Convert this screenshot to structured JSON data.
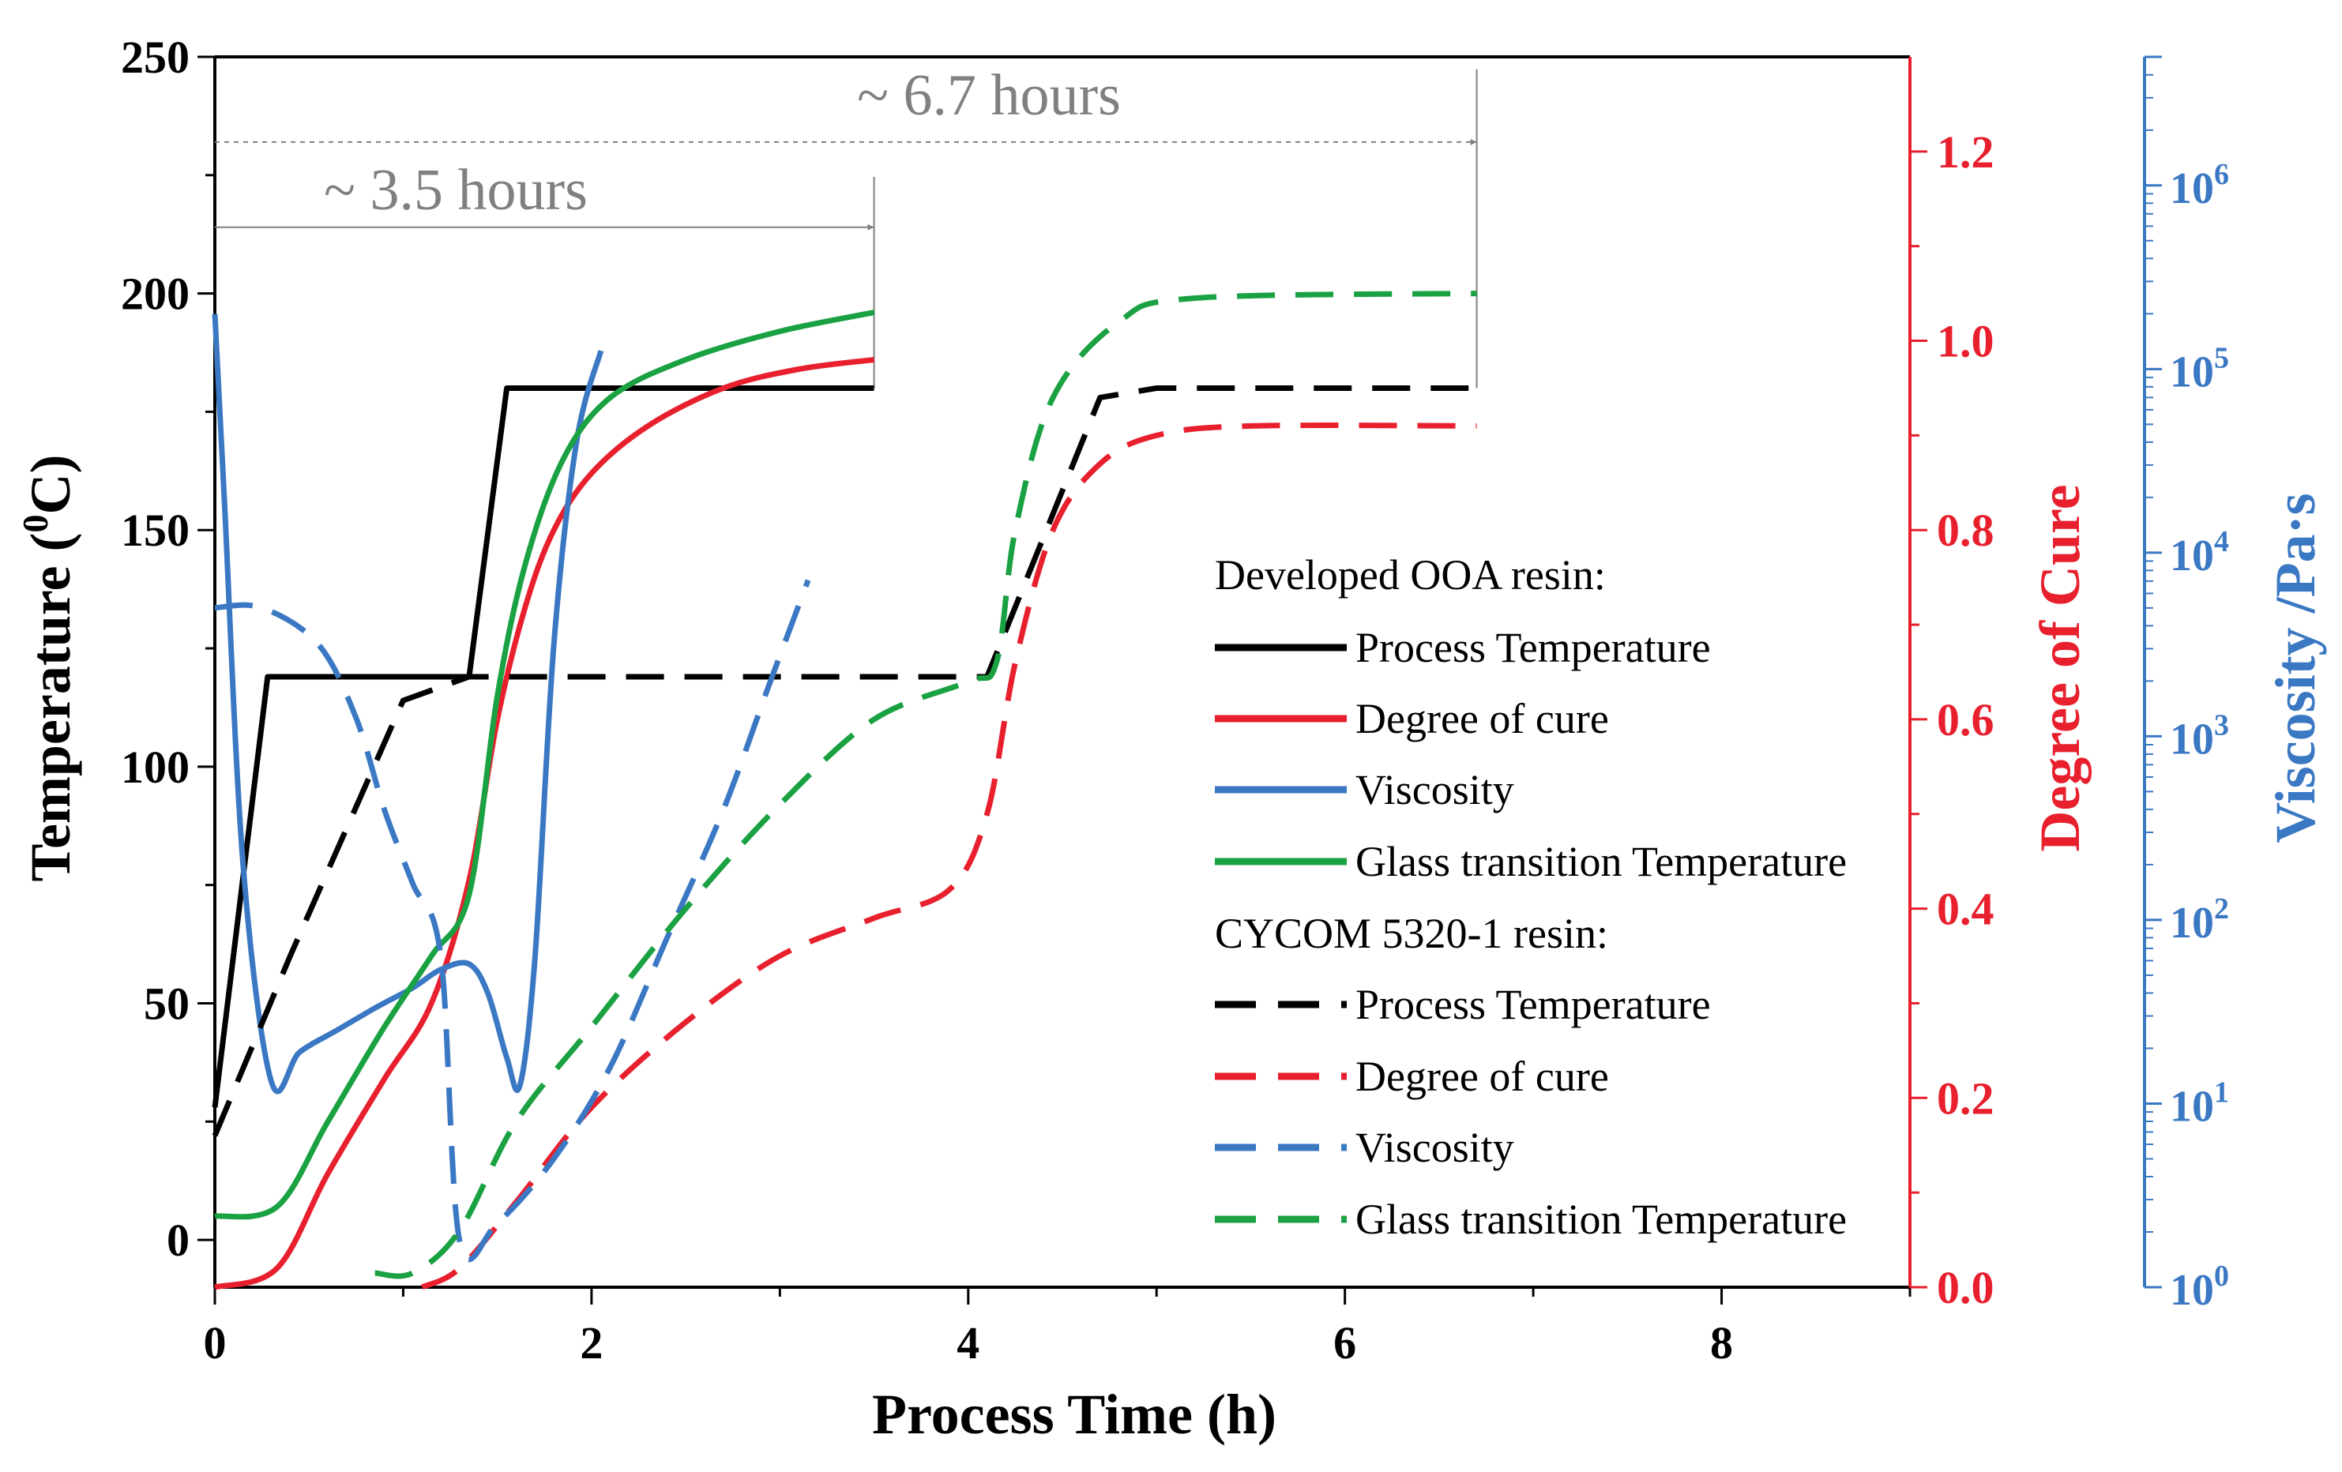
{
  "chart_data": {
    "type": "line",
    "xlabel": "Process Time (h)",
    "ylabel_left_main": "Temperature (",
    "ylabel_left_sup": "0",
    "ylabel_left_end": "C)",
    "ylabel_right1": "Degree of Cure",
    "ylabel_right2": "Viscosity /Pa·s",
    "xlim": [
      0,
      9
    ],
    "ylim_left": [
      -10,
      250
    ],
    "ylim_right1": [
      0,
      1.3
    ],
    "ylim_right2_log10": [
      0,
      6.7
    ],
    "x_ticks": [
      "0",
      "2",
      "4",
      "6",
      "8"
    ],
    "y_left_ticks": [
      "0",
      "50",
      "100",
      "150",
      "200",
      "250"
    ],
    "y_right1_ticks": [
      "0.0",
      "0.2",
      "0.4",
      "0.6",
      "0.8",
      "1.0",
      "1.2"
    ],
    "y_right2_tick_base": "10",
    "y_right2_tick_exponents": [
      "0",
      "1",
      "2",
      "3",
      "4",
      "5",
      "6"
    ],
    "annotations": {
      "short": {
        "text": "~ 3.5 hours",
        "x_end": 3.5,
        "y_level": 214
      },
      "long": {
        "text": "~ 6.7 hours",
        "x_end": 6.7,
        "y_level": 232
      }
    },
    "legend": {
      "group1_title": "Developed OOA resin:",
      "group2_title": "CYCOM 5320-1 resin:",
      "entries1": [
        "Process Temperature",
        "Degree of cure",
        "Viscosity",
        "Glass transition Temperature"
      ],
      "entries2": [
        "Process Temperature",
        "Degree of cure",
        "Viscosity",
        "Glass transition Temperature"
      ]
    },
    "colors": {
      "temperature": "#000000",
      "cure": "#e8202e",
      "viscosity": "#3b78c3",
      "tg": "#1aa142",
      "annotation": "#808080"
    },
    "series": [
      {
        "name": "Developed OOA resin: Process Temperature",
        "axis": "left",
        "style": "solid",
        "color_key": "temperature",
        "points": [
          [
            0,
            28
          ],
          [
            0.28,
            119
          ],
          [
            1.35,
            119
          ],
          [
            1.55,
            180
          ],
          [
            3.5,
            180
          ]
        ]
      },
      {
        "name": "Developed OOA resin: Degree of cure",
        "axis": "right1",
        "style": "solid",
        "color_key": "cure",
        "points": [
          [
            0,
            0
          ],
          [
            0.33,
            0.02
          ],
          [
            0.6,
            0.12
          ],
          [
            0.9,
            0.22
          ],
          [
            1.15,
            0.3
          ],
          [
            1.35,
            0.43
          ],
          [
            1.5,
            0.6
          ],
          [
            1.65,
            0.72
          ],
          [
            1.8,
            0.8
          ],
          [
            2.0,
            0.86
          ],
          [
            2.3,
            0.91
          ],
          [
            2.7,
            0.95
          ],
          [
            3.1,
            0.97
          ],
          [
            3.5,
            0.98
          ]
        ]
      },
      {
        "name": "Developed OOA resin: Viscosity",
        "axis": "right2",
        "style": "solid",
        "color_key": "viscosity",
        "points": [
          [
            0,
            5.3
          ],
          [
            0.05,
            4.3
          ],
          [
            0.15,
            2.3
          ],
          [
            0.3,
            1.12
          ],
          [
            0.45,
            1.28
          ],
          [
            0.65,
            1.4
          ],
          [
            0.85,
            1.52
          ],
          [
            1.05,
            1.63
          ],
          [
            1.2,
            1.73
          ],
          [
            1.35,
            1.76
          ],
          [
            1.45,
            1.6
          ],
          [
            1.55,
            1.25
          ],
          [
            1.62,
            1.1
          ],
          [
            1.7,
            1.8
          ],
          [
            1.8,
            3.5
          ],
          [
            1.92,
            4.6
          ],
          [
            2.05,
            5.1
          ]
        ]
      },
      {
        "name": "Developed OOA resin: Glass transition Temperature",
        "axis": "left",
        "style": "solid",
        "color_key": "tg",
        "points": [
          [
            0,
            5
          ],
          [
            0.33,
            7
          ],
          [
            0.6,
            25
          ],
          [
            0.9,
            45
          ],
          [
            1.15,
            60
          ],
          [
            1.35,
            73
          ],
          [
            1.5,
            115
          ],
          [
            1.65,
            143
          ],
          [
            1.85,
            165
          ],
          [
            2.1,
            178
          ],
          [
            2.5,
            186
          ],
          [
            3.0,
            192
          ],
          [
            3.5,
            196
          ]
        ]
      },
      {
        "name": "CYCOM 5320-1 resin: Process Temperature",
        "axis": "left",
        "style": "dashed",
        "color_key": "temperature",
        "points": [
          [
            0,
            22
          ],
          [
            0.4,
            60
          ],
          [
            1.0,
            114
          ],
          [
            1.35,
            119
          ],
          [
            4.1,
            119
          ],
          [
            4.7,
            178
          ],
          [
            5.0,
            180
          ],
          [
            6.7,
            180
          ]
        ]
      },
      {
        "name": "CYCOM 5320-1 resin: Degree of cure",
        "axis": "right1",
        "style": "dashed",
        "color_key": "cure",
        "points": [
          [
            1.1,
            0.0
          ],
          [
            1.3,
            0.02
          ],
          [
            1.6,
            0.09
          ],
          [
            2.0,
            0.19
          ],
          [
            2.5,
            0.28
          ],
          [
            3.0,
            0.35
          ],
          [
            3.5,
            0.39
          ],
          [
            3.9,
            0.42
          ],
          [
            4.1,
            0.5
          ],
          [
            4.25,
            0.66
          ],
          [
            4.45,
            0.8
          ],
          [
            4.7,
            0.87
          ],
          [
            5.0,
            0.9
          ],
          [
            5.5,
            0.91
          ],
          [
            6.7,
            0.91
          ]
        ]
      },
      {
        "name": "CYCOM 5320-1 resin: Viscosity",
        "axis": "right2",
        "style": "dashed",
        "color_key": "viscosity",
        "points": [
          [
            0,
            3.7
          ],
          [
            0.25,
            3.7
          ],
          [
            0.55,
            3.5
          ],
          [
            0.75,
            3.1
          ],
          [
            0.9,
            2.6
          ],
          [
            1.05,
            2.2
          ],
          [
            1.2,
            1.8
          ],
          [
            1.3,
            0.25
          ],
          [
            1.5,
            0.35
          ],
          [
            1.8,
            0.7
          ],
          [
            2.1,
            1.2
          ],
          [
            2.4,
            1.9
          ],
          [
            2.7,
            2.6
          ],
          [
            2.95,
            3.3
          ],
          [
            3.15,
            3.85
          ]
        ]
      },
      {
        "name": "CYCOM 5320-1 resin: Glass transition Temperature",
        "axis": "left",
        "style": "dashed",
        "color_key": "tg",
        "points": [
          [
            0.85,
            -7
          ],
          [
            1.05,
            -7
          ],
          [
            1.3,
            2
          ],
          [
            1.6,
            25
          ],
          [
            2.0,
            45
          ],
          [
            2.5,
            70
          ],
          [
            3.0,
            92
          ],
          [
            3.5,
            110
          ],
          [
            4.0,
            118
          ],
          [
            4.15,
            122
          ],
          [
            4.25,
            150
          ],
          [
            4.45,
            178
          ],
          [
            4.8,
            194
          ],
          [
            5.2,
            199
          ],
          [
            6.7,
            200
          ]
        ]
      }
    ]
  }
}
